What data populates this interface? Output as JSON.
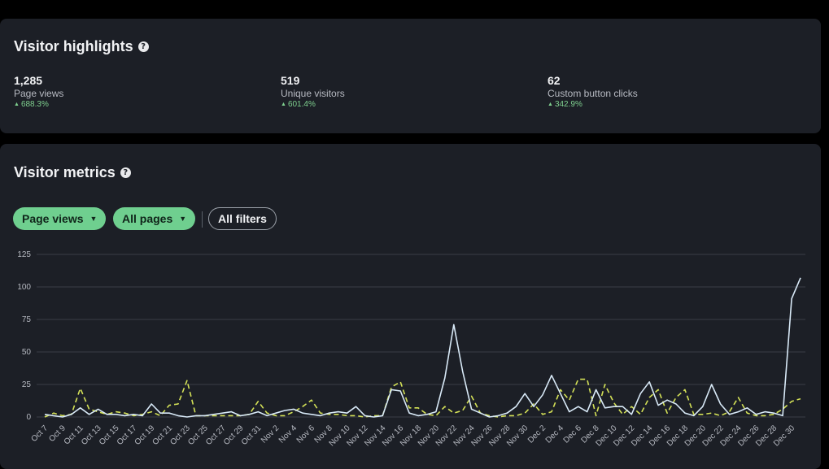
{
  "highlights": {
    "title": "Visitor highlights",
    "help_icon": "question-circle-icon",
    "stats": [
      {
        "value": "1,285",
        "label": "Page views",
        "change": "688.3%"
      },
      {
        "value": "519",
        "label": "Unique visitors",
        "change": "601.4%"
      },
      {
        "value": "62",
        "label": "Custom button clicks",
        "change": "342.9%"
      }
    ],
    "colors": {
      "positive": "#7fd08f"
    }
  },
  "metrics": {
    "title": "Visitor metrics",
    "help_icon": "question-circle-icon",
    "filters": {
      "metric_select": "Page views",
      "pages_select": "All pages",
      "all_filters": "All filters"
    }
  },
  "chart_data": {
    "type": "line",
    "ylim": [
      0,
      125
    ],
    "yticks": [
      0,
      25,
      50,
      75,
      100,
      125
    ],
    "grid": true,
    "x": [
      "Oct 7",
      "Oct 8",
      "Oct 9",
      "Oct 10",
      "Oct 11",
      "Oct 12",
      "Oct 13",
      "Oct 14",
      "Oct 15",
      "Oct 16",
      "Oct 17",
      "Oct 18",
      "Oct 19",
      "Oct 20",
      "Oct 21",
      "Oct 22",
      "Oct 23",
      "Oct 24",
      "Oct 25",
      "Oct 26",
      "Oct 27",
      "Oct 28",
      "Oct 29",
      "Oct 30",
      "Oct 31",
      "Nov 1",
      "Nov 2",
      "Nov 3",
      "Nov 4",
      "Nov 5",
      "Nov 6",
      "Nov 7",
      "Nov 8",
      "Nov 9",
      "Nov 10",
      "Nov 11",
      "Nov 12",
      "Nov 13",
      "Nov 14",
      "Nov 15",
      "Nov 16",
      "Nov 17",
      "Nov 18",
      "Nov 19",
      "Nov 20",
      "Nov 21",
      "Nov 22",
      "Nov 23",
      "Nov 24",
      "Nov 25",
      "Nov 26",
      "Nov 27",
      "Nov 28",
      "Nov 29",
      "Nov 30",
      "Dec 1",
      "Dec 2",
      "Dec 3",
      "Dec 4",
      "Dec 5",
      "Dec 6",
      "Dec 7",
      "Dec 8",
      "Dec 9",
      "Dec 10",
      "Dec 11",
      "Dec 12",
      "Dec 13",
      "Dec 14",
      "Dec 15",
      "Dec 16",
      "Dec 17",
      "Dec 18",
      "Dec 19",
      "Dec 20",
      "Dec 21",
      "Dec 22",
      "Dec 23",
      "Dec 24",
      "Dec 25",
      "Dec 26",
      "Dec 27",
      "Dec 28",
      "Dec 29",
      "Dec 30",
      "Dec 31"
    ],
    "xtick_labels": [
      "Oct 7",
      "Oct 9",
      "Oct 11",
      "Oct 13",
      "Oct 15",
      "Oct 17",
      "Oct 19",
      "Oct 21",
      "Oct 23",
      "Oct 25",
      "Oct 27",
      "Oct 29",
      "Oct 31",
      "Nov 2",
      "Nov 4",
      "Nov 6",
      "Nov 8",
      "Nov 10",
      "Nov 12",
      "Nov 14",
      "Nov 16",
      "Nov 18",
      "Nov 20",
      "Nov 22",
      "Nov 24",
      "Nov 26",
      "Nov 28",
      "Nov 30",
      "Dec 2",
      "Dec 4",
      "Dec 6",
      "Dec 8",
      "Dec 10",
      "Dec 12",
      "Dec 14",
      "Dec 16",
      "Dec 18",
      "Dec 20",
      "Dec 22",
      "Dec 24",
      "Dec 26",
      "Dec 28",
      "Dec 30"
    ],
    "series": [
      {
        "color": "#d8e9f7",
        "dash": false,
        "values": [
          2,
          1,
          0,
          2,
          7,
          2,
          6,
          2,
          2,
          1,
          2,
          1,
          10,
          3,
          3,
          1,
          0,
          1,
          1,
          2,
          3,
          4,
          1,
          2,
          4,
          1,
          3,
          5,
          6,
          3,
          2,
          1,
          3,
          4,
          3,
          8,
          1,
          0,
          1,
          21,
          20,
          3,
          1,
          2,
          4,
          30,
          71,
          35,
          6,
          3,
          0,
          1,
          3,
          8,
          18,
          8,
          17,
          32,
          18,
          4,
          8,
          4,
          21,
          7,
          8,
          8,
          2,
          18,
          27,
          9,
          13,
          10,
          3,
          1,
          8,
          25,
          10,
          2,
          4,
          7,
          2,
          4,
          3,
          1,
          91,
          107
        ]
      },
      {
        "color": "#d4e157",
        "dash": true,
        "values": [
          0,
          3,
          1,
          2,
          22,
          6,
          4,
          2,
          4,
          3,
          1,
          2,
          4,
          1,
          9,
          10,
          28,
          1,
          1,
          1,
          1,
          1,
          1,
          2,
          12,
          3,
          1,
          1,
          4,
          8,
          13,
          3,
          2,
          2,
          1,
          1,
          0,
          1,
          1,
          23,
          27,
          7,
          7,
          2,
          1,
          8,
          3,
          5,
          16,
          3,
          1,
          0,
          1,
          1,
          3,
          10,
          2,
          4,
          21,
          13,
          29,
          29,
          1,
          25,
          11,
          2,
          8,
          2,
          15,
          21,
          3,
          15,
          21,
          2,
          2,
          3,
          1,
          4,
          15,
          3,
          1,
          1,
          2,
          6,
          12,
          14
        ]
      }
    ]
  }
}
